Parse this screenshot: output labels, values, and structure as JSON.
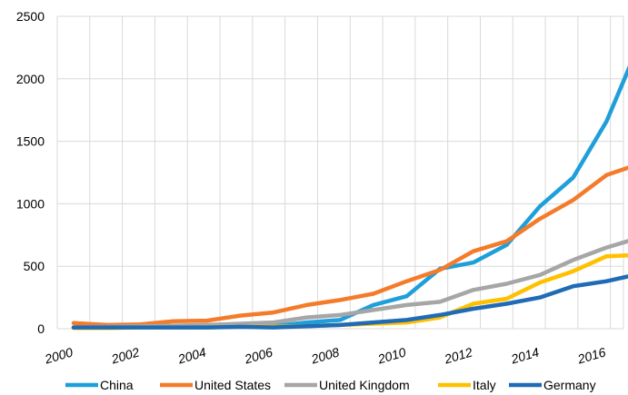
{
  "chart_data": {
    "type": "line",
    "title": "",
    "xlabel": "",
    "ylabel": "",
    "ylim": [
      0,
      2500
    ],
    "xlim": [
      2000,
      2017
    ],
    "yticks": [
      "0",
      "500",
      "1000",
      "1500",
      "2000",
      "2500"
    ],
    "xticks": [
      "2000",
      "2002",
      "2004",
      "2006",
      "2008",
      "2010",
      "2012",
      "2014",
      "2016"
    ],
    "grid": true,
    "legend_position": "bottom",
    "x": [
      2000,
      2001,
      2002,
      2003,
      2004,
      2005,
      2006,
      2007,
      2008,
      2009,
      2010,
      2011,
      2012,
      2013,
      2014,
      2015,
      2016,
      2017
    ],
    "series": [
      {
        "name": "China",
        "color": "#1f9fd9",
        "values": [
          10,
          15,
          20,
          20,
          20,
          30,
          20,
          50,
          70,
          190,
          260,
          480,
          530,
          670,
          980,
          1210,
          1660,
          2290
        ]
      },
      {
        "name": "United States",
        "color": "#f47b2a",
        "values": [
          45,
          30,
          35,
          60,
          65,
          105,
          130,
          190,
          230,
          280,
          380,
          470,
          620,
          700,
          880,
          1030,
          1230,
          1320
        ]
      },
      {
        "name": "United Kingdom",
        "color": "#a6a6a6",
        "values": [
          10,
          15,
          20,
          25,
          30,
          40,
          50,
          90,
          110,
          150,
          190,
          215,
          310,
          360,
          430,
          550,
          650,
          730
        ]
      },
      {
        "name": "Italy",
        "color": "#ffc000",
        "values": [
          5,
          5,
          10,
          10,
          10,
          15,
          15,
          20,
          30,
          40,
          50,
          90,
          200,
          240,
          370,
          460,
          580,
          590
        ]
      },
      {
        "name": "Germany",
        "color": "#1f6bb5",
        "values": [
          10,
          10,
          10,
          10,
          10,
          15,
          10,
          20,
          30,
          50,
          70,
          110,
          160,
          200,
          250,
          340,
          380,
          440
        ]
      }
    ]
  }
}
